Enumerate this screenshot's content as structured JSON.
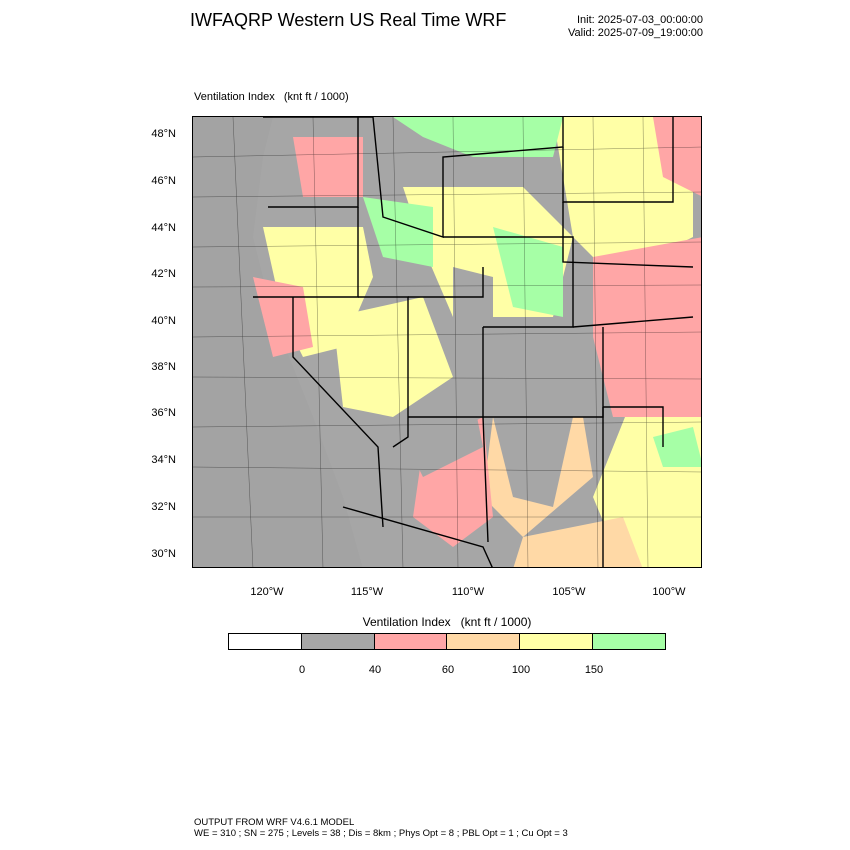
{
  "header": {
    "title": "IWFAQRP Western US Real Time WRF",
    "init": "Init: 2025-07-03_00:00:00",
    "valid": "Valid: 2025-07-09_19:00:00"
  },
  "map": {
    "subtitle": "Ventilation Index   (knt ft / 1000)",
    "lat_labels": [
      "48°N",
      "46°N",
      "44°N",
      "42°N",
      "40°N",
      "38°N",
      "36°N",
      "34°N",
      "32°N",
      "30°N"
    ],
    "lon_labels": [
      "120°W",
      "115°W",
      "110°W",
      "105°W",
      "100°W"
    ]
  },
  "legend": {
    "title": "Ventilation Index   (knt ft / 1000)",
    "colors": [
      "#ffffff",
      "#a6a6a6",
      "#ffa6a6",
      "#ffd9a6",
      "#ffffa6",
      "#a6ffa6"
    ],
    "tick_labels": [
      "0",
      "40",
      "60",
      "100",
      "150"
    ]
  },
  "footer": {
    "line1": "OUTPUT FROM WRF V4.6.1 MODEL",
    "line2": "WE = 310 ; SN = 275 ; Levels = 38 ; Dis = 8km ; Phys Opt = 8 ; PBL Opt = 1 ; Cu Opt = 3"
  }
}
